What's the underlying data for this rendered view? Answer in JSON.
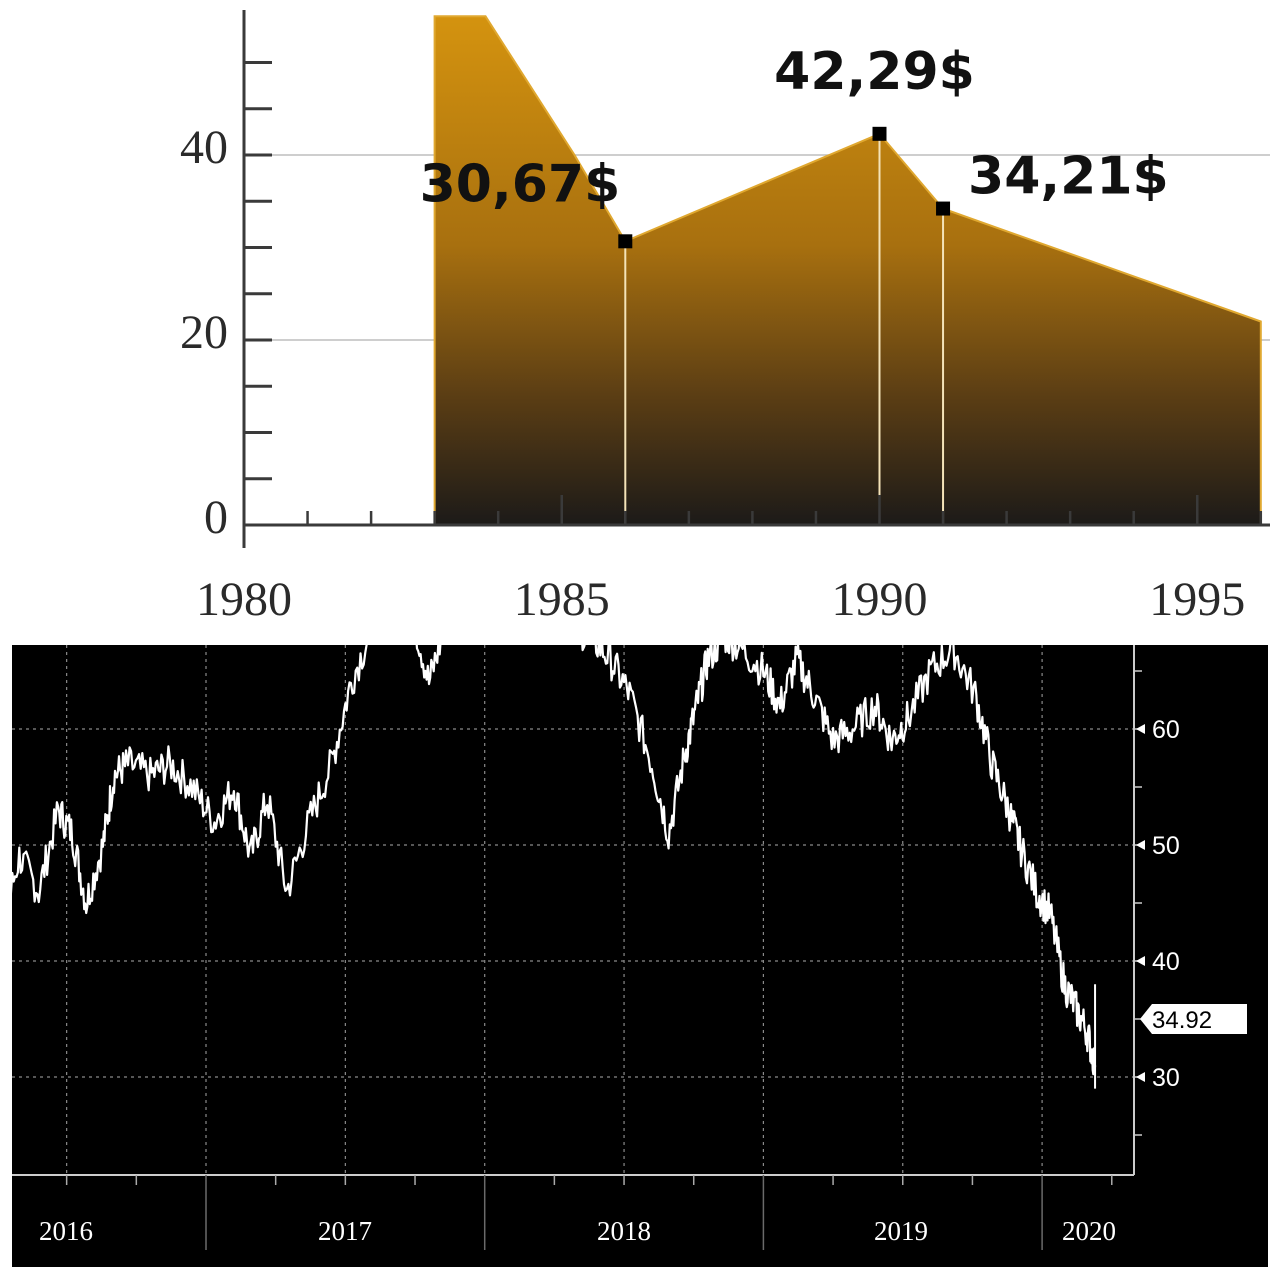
{
  "chart_data": [
    {
      "type": "area",
      "title": "",
      "xlabel": "",
      "ylabel": "",
      "xlim": [
        1980,
        1996
      ],
      "ylim": [
        0,
        55
      ],
      "grid": true,
      "x_ticks": [
        1980,
        1985,
        1990,
        1995
      ],
      "y_ticks": [
        0,
        20,
        40
      ],
      "fill_colors": [
        "#d4930f",
        "#1c1a18"
      ],
      "series": [
        {
          "x": [
            1983.0,
            1983.8,
            1985.2,
            1986.0,
            1990.0,
            1991.0,
            1996.0
          ],
          "y": [
            55,
            55,
            40,
            30.67,
            42.29,
            34.21,
            22.0
          ]
        }
      ],
      "annotations": [
        {
          "x": 1986,
          "y": 30.67,
          "text": "30,67$"
        },
        {
          "x": 1990,
          "y": 42.29,
          "text": "42,29$"
        },
        {
          "x": 1991,
          "y": 34.21,
          "text": "34,21$"
        }
      ]
    },
    {
      "type": "line",
      "title": "",
      "xlabel": "",
      "ylabel": "",
      "background": "#000000",
      "line_color": "#ffffff",
      "xlim": [
        2015.95,
        2020.3
      ],
      "ylim": [
        23,
        69
      ],
      "grid": true,
      "y_axis_side": "right",
      "y_ticks": [
        30,
        40,
        50,
        60
      ],
      "x_ticks": [
        "2016",
        "2017",
        "2018",
        "2019",
        "2020"
      ],
      "current_value": "34.92",
      "series": [
        {
          "x": [
            2016.0,
            2016.05,
            2016.12,
            2016.18,
            2016.26,
            2016.33,
            2016.4,
            2016.47,
            2016.52,
            2016.57,
            2016.63,
            2016.67,
            2016.72,
            2016.8,
            2016.87,
            2016.95,
            2017.03,
            2017.1,
            2017.16,
            2017.22,
            2017.29,
            2017.37,
            2017.45,
            2017.52,
            2017.6,
            2017.68,
            2017.74,
            2017.8,
            2017.86,
            2017.92,
            2018.0,
            2018.08,
            2018.15,
            2018.22,
            2018.3,
            2018.38,
            2018.45,
            2018.52,
            2018.6,
            2018.66,
            2018.72,
            2018.76,
            2018.8,
            2018.86,
            2018.92,
            2019.0,
            2019.06,
            2019.12,
            2019.18,
            2019.25,
            2019.32,
            2019.4,
            2019.46,
            2019.52,
            2019.6,
            2019.68,
            2019.76,
            2019.82,
            2019.88,
            2019.92,
            2019.98,
            2020.03,
            2020.08,
            2020.12,
            2020.16,
            2020.19,
            2020.2,
            2020.21
          ],
          "y": [
            46,
            49,
            51,
            47,
            42,
            49,
            46,
            53,
            51,
            45,
            50,
            56,
            57,
            56,
            57,
            55,
            52,
            55,
            49,
            54,
            46,
            52,
            57,
            64,
            69,
            72,
            70,
            64,
            69,
            70,
            71,
            70,
            71,
            70,
            69,
            68,
            66,
            63,
            57,
            51,
            58,
            62,
            66,
            68,
            67,
            65,
            62,
            66,
            63,
            59,
            60,
            62,
            59,
            61,
            65,
            67,
            63,
            57,
            53,
            50,
            46,
            44,
            38,
            36,
            34,
            31,
            34.92,
            34.92
          ]
        }
      ]
    }
  ]
}
